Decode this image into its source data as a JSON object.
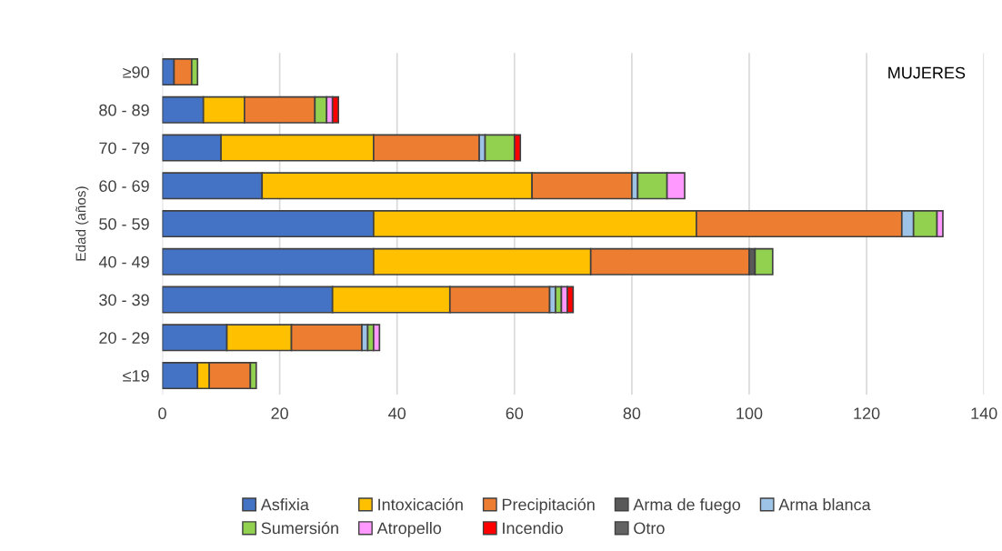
{
  "chart_data": {
    "type": "bar",
    "orientation": "horizontal",
    "stacked": true,
    "ylabel": "Edad (años)",
    "annotations": [
      "MUJERES"
    ],
    "categories": [
      "≥90",
      "80 - 89",
      "70 - 79",
      "60 - 69",
      "50 - 59",
      "40 - 49",
      "30 - 39",
      "20 - 29",
      "≤19"
    ],
    "series": [
      {
        "name": "Asfixia",
        "color": "#4472c4",
        "values": [
          2,
          7,
          10,
          17,
          36,
          36,
          29,
          11,
          6
        ]
      },
      {
        "name": "Intoxicación",
        "color": "#ffc000",
        "values": [
          0,
          7,
          26,
          46,
          55,
          37,
          20,
          11,
          2
        ]
      },
      {
        "name": "Precipitación",
        "color": "#ed7d31",
        "values": [
          3,
          12,
          18,
          17,
          35,
          27,
          17,
          12,
          7
        ]
      },
      {
        "name": "Arma de fuego",
        "color": "#595959",
        "values": [
          0,
          0,
          0,
          0,
          0,
          1,
          0,
          0,
          0
        ]
      },
      {
        "name": "Arma blanca",
        "color": "#9dc3e6",
        "values": [
          0,
          0,
          1,
          1,
          2,
          0,
          1,
          1,
          0
        ]
      },
      {
        "name": "Sumersión",
        "color": "#92d050",
        "values": [
          1,
          2,
          5,
          5,
          4,
          3,
          1,
          1,
          1
        ]
      },
      {
        "name": "Atropello",
        "color": "#ff99ff",
        "values": [
          0,
          1,
          0,
          3,
          1,
          0,
          1,
          1,
          0
        ]
      },
      {
        "name": "Incendio",
        "color": "#ff0000",
        "values": [
          0,
          1,
          1,
          0,
          0,
          0,
          1,
          0,
          0
        ]
      },
      {
        "name": "Otro",
        "color": "#636363",
        "values": [
          0,
          0,
          0,
          0,
          0,
          0,
          0,
          0,
          0
        ]
      }
    ],
    "xlim": [
      0,
      140
    ],
    "xticks": [
      0,
      20,
      40,
      60,
      80,
      100,
      120,
      140
    ],
    "grid": "x",
    "legend": "bottom"
  }
}
